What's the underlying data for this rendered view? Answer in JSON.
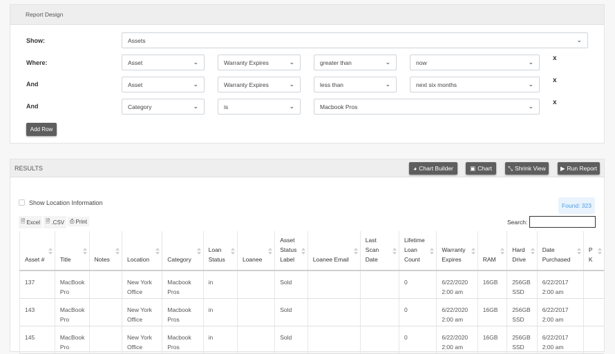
{
  "design": {
    "title": "Report Design",
    "show_label": "Show:",
    "show_value": "Assets",
    "rows": [
      {
        "label": "Where:",
        "field1": "Asset",
        "field2": "Warranty Expires",
        "operator": "greater than",
        "value": "now"
      },
      {
        "label": "And",
        "field1": "Asset",
        "field2": "Warranty Expires",
        "operator": "less than",
        "value": "next six months"
      },
      {
        "label": "And",
        "field1": "Category",
        "field2": "is",
        "value": "Macbook Pros"
      }
    ],
    "remove_glyph": "x",
    "add_row": "Add Row"
  },
  "results": {
    "title": "RESULTS",
    "buttons": {
      "chart_builder": "Chart Builder",
      "chart": "Chart",
      "shrink": "Shrink View",
      "run": "Run Report"
    },
    "show_location": "Show Location Information",
    "found": "Found: 323",
    "export": {
      "excel": "Excel",
      "csv": ".CSV",
      "print": "Print"
    },
    "search_label": "Search:",
    "search_value": "",
    "columns": [
      "Asset #",
      "Title",
      "Notes",
      "Location",
      "Category",
      "Loan Status",
      "Loanee",
      "Asset Status Label",
      "Loanee Email",
      "Last Scan Date",
      "Lifetime Loan Count",
      "Warranty Expires",
      "RAM",
      "Hard Drive",
      "Date Purchased",
      "P K"
    ],
    "rows": [
      [
        "137",
        "MacBook Pro",
        "",
        "New York Office",
        "Macbook Pros",
        "in",
        "",
        "Sold",
        "",
        "",
        "0",
        "6/22/2020 2:00 am",
        "16GB",
        "256GB SSD",
        "6/22/2017 2:00 am",
        ""
      ],
      [
        "143",
        "MacBook Pro",
        "",
        "New York Office",
        "Macbook Pros",
        "in",
        "",
        "Sold",
        "",
        "",
        "0",
        "6/22/2020 2:00 am",
        "16GB",
        "256GB SSD",
        "6/22/2017 2:00 am",
        ""
      ],
      [
        "145",
        "MacBook Pro",
        "",
        "New York Office",
        "Macbook Pros",
        "in",
        "",
        "Sold",
        "",
        "",
        "0",
        "6/22/2020 2:00 am",
        "16GB",
        "256GB SSD",
        "6/22/2017 2:00 am",
        ""
      ]
    ]
  }
}
